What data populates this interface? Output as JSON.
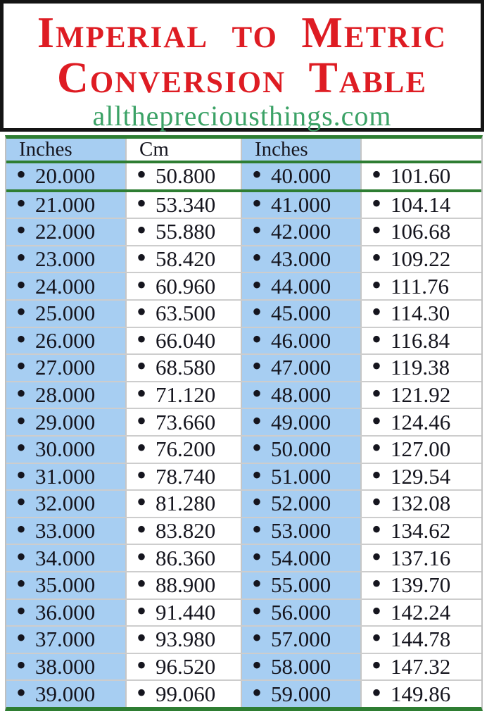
{
  "banner": {
    "title_line1": "Imperial to Metric",
    "title_line2": "Conversion Table",
    "website": "allthepreciousthings.com"
  },
  "table": {
    "columns": [
      "Inches",
      "Cm",
      "Inches",
      ""
    ],
    "bullet": "•",
    "rows": [
      [
        "20.000",
        "50.800",
        "40.000",
        "101.60"
      ],
      [
        "21.000",
        "53.340",
        "41.000",
        "104.14"
      ],
      [
        "22.000",
        "55.880",
        "42.000",
        "106.68"
      ],
      [
        "23.000",
        "58.420",
        "43.000",
        "109.22"
      ],
      [
        "24.000",
        "60.960",
        "44.000",
        "111.76"
      ],
      [
        "25.000",
        "63.500",
        "45.000",
        "114.30"
      ],
      [
        "26.000",
        "66.040",
        "46.000",
        "116.84"
      ],
      [
        "27.000",
        "68.580",
        "47.000",
        "119.38"
      ],
      [
        "28.000",
        "71.120",
        "48.000",
        "121.92"
      ],
      [
        "29.000",
        "73.660",
        "49.000",
        "124.46"
      ],
      [
        "30.000",
        "76.200",
        "50.000",
        "127.00"
      ],
      [
        "31.000",
        "78.740",
        "51.000",
        "129.54"
      ],
      [
        "32.000",
        "81.280",
        "52.000",
        "132.08"
      ],
      [
        "33.000",
        "83.820",
        "53.000",
        "134.62"
      ],
      [
        "34.000",
        "86.360",
        "54.000",
        "137.16"
      ],
      [
        "35.000",
        "88.900",
        "55.000",
        "139.70"
      ],
      [
        "36.000",
        "91.440",
        "56.000",
        "142.24"
      ],
      [
        "37.000",
        "93.980",
        "57.000",
        "144.78"
      ],
      [
        "38.000",
        "96.520",
        "58.000",
        "147.32"
      ],
      [
        "39.000",
        "99.060",
        "59.000",
        "149.86"
      ]
    ]
  },
  "colors": {
    "title_red": "#de1c23",
    "website_green": "#3ba266",
    "line_green": "#2e7d32",
    "cell_blue": "#a7cef2",
    "separator_gray": "#cdcdcd",
    "text": "#15151e",
    "border_black": "#141414"
  }
}
